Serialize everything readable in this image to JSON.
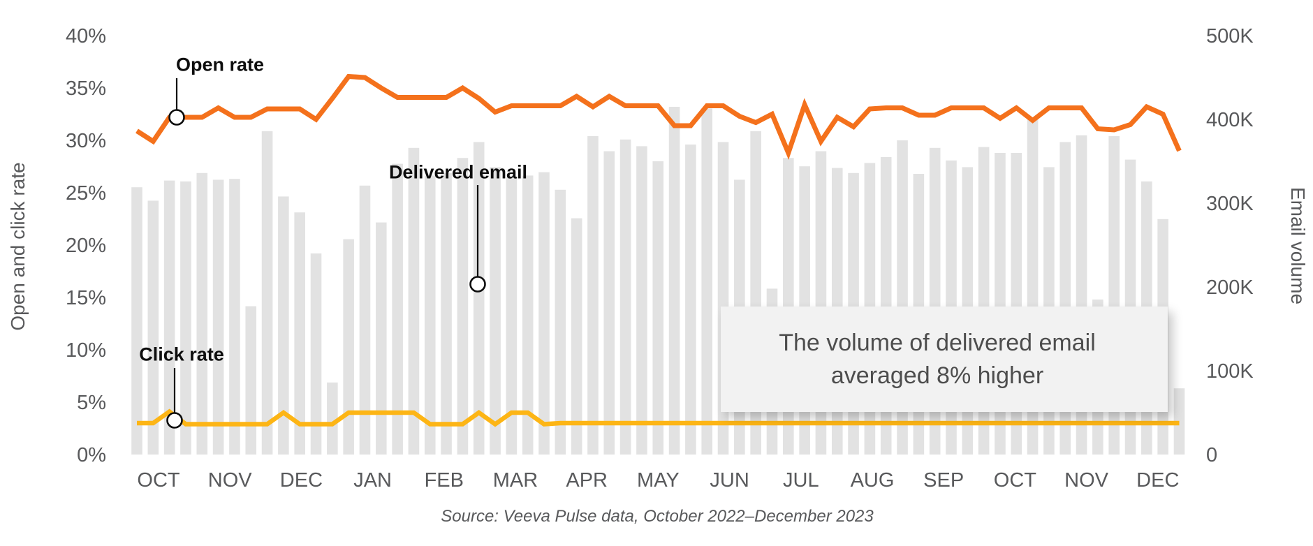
{
  "chart_data": {
    "type": "bar+line combo, weekly data",
    "x_axis": {
      "months": [
        "OCT",
        "NOV",
        "DEC",
        "JAN",
        "FEB",
        "MAR",
        "APR",
        "MAY",
        "JUN",
        "JUL",
        "AUG",
        "SEP",
        "OCT",
        "NOV",
        "DEC"
      ],
      "weeks": 65
    },
    "y_left": {
      "label": "Open and click rate",
      "unit": "%",
      "min": 0,
      "max": 40,
      "ticks": [
        "0%",
        "5%",
        "10%",
        "15%",
        "20%",
        "25%",
        "30%",
        "35%",
        "40%"
      ]
    },
    "y_right": {
      "label": "Email volume",
      "unit": "emails",
      "min": 0,
      "max": 500000,
      "ticks": [
        "0",
        "100K",
        "200K",
        "300K",
        "400K",
        "500K"
      ]
    },
    "series": {
      "delivered_email": {
        "label": "Delivered email",
        "type": "bar",
        "color": "#E2E2E2",
        "unit": "thousands of emails per week",
        "values_k": [
          319,
          303,
          327,
          326,
          336,
          328,
          329,
          177,
          386,
          308,
          289,
          240,
          86,
          257,
          321,
          277,
          347,
          366,
          333,
          336,
          354,
          373,
          343,
          331,
          333,
          337,
          316,
          282,
          380,
          362,
          376,
          368,
          350,
          415,
          370,
          413,
          373,
          328,
          386,
          198,
          354,
          344,
          362,
          342,
          336,
          348,
          355,
          375,
          335,
          366,
          351,
          343,
          367,
          360,
          360,
          401,
          343,
          373,
          381,
          185,
          380,
          352,
          326,
          281,
          79
        ]
      },
      "open_rate": {
        "label": "Open rate",
        "type": "line",
        "color": "#F4711C",
        "unit": "%",
        "values": [
          30.9,
          29.9,
          32.2,
          32.2,
          32.2,
          33.1,
          32.2,
          32.2,
          33.0,
          33.0,
          33.0,
          32.0,
          34.0,
          36.1,
          36.0,
          35.0,
          34.1,
          34.1,
          34.1,
          34.1,
          35.0,
          34.0,
          32.7,
          33.3,
          33.3,
          33.3,
          33.3,
          34.2,
          33.2,
          34.2,
          33.3,
          33.3,
          33.3,
          31.4,
          31.4,
          33.3,
          33.3,
          32.3,
          31.7,
          32.5,
          28.8,
          33.4,
          29.9,
          32.2,
          31.3,
          33.0,
          33.1,
          33.1,
          32.4,
          32.4,
          33.1,
          33.1,
          33.1,
          32.1,
          33.1,
          31.9,
          33.1,
          33.1,
          33.1,
          31.1,
          31.0,
          31.5,
          33.2,
          32.5,
          29.0
        ]
      },
      "click_rate": {
        "label": "Click rate",
        "type": "line",
        "color": "#FDB515",
        "unit": "%",
        "values": [
          3.0,
          3.0,
          4.1,
          2.9,
          2.9,
          2.9,
          2.9,
          2.9,
          2.9,
          4.0,
          2.9,
          2.9,
          2.9,
          4.0,
          4.0,
          4.0,
          4.0,
          4.0,
          2.9,
          2.9,
          2.9,
          4.0,
          2.9,
          4.0,
          4.0,
          2.9,
          3.0,
          3.0,
          3.0,
          3.0,
          3.0,
          3.0,
          3.0,
          3.0,
          3.0,
          3.0,
          3.0,
          3.0,
          3.0,
          3.0,
          3.0,
          3.0,
          3.0,
          3.0,
          3.0,
          3.0,
          3.0,
          3.0,
          3.0,
          3.0,
          3.0,
          3.0,
          3.0,
          3.0,
          3.0,
          3.0,
          3.0,
          3.0,
          3.0,
          3.0,
          3.0,
          3.0,
          3.0,
          3.0,
          3.0
        ]
      }
    },
    "legend_position": "inline annotations with leader lines",
    "grid": false
  },
  "callout": {
    "line1": "The volume of delivered email",
    "line2": "averaged 8% higher"
  },
  "source": {
    "text": "Source: Veeva Pulse data, October 2022–December 2023"
  }
}
